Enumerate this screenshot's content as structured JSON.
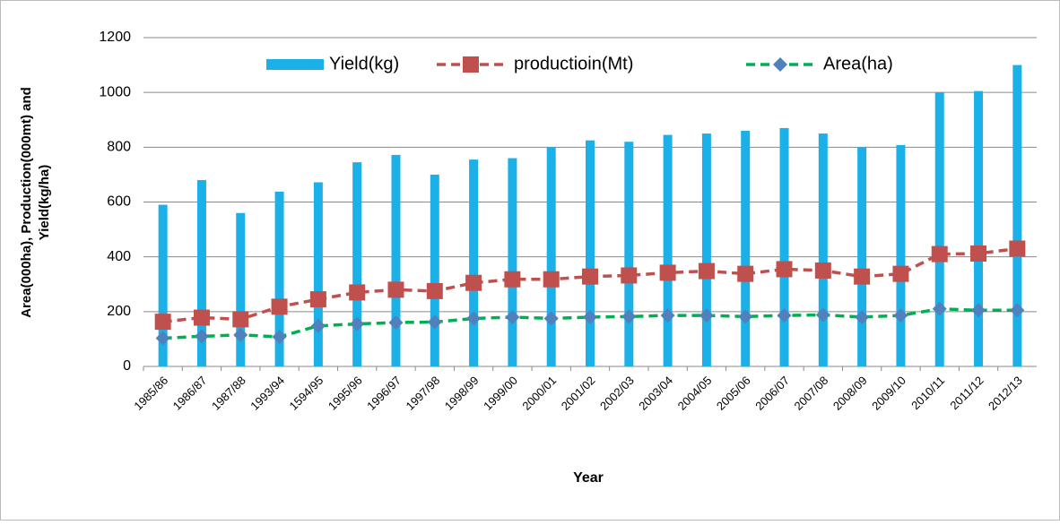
{
  "chart_data": {
    "type": "combo",
    "y_label": [
      "Area(000ha), Production(000mt) and",
      "Yield(kg/ha)"
    ],
    "x_label": "Year",
    "categories": [
      "1985/86",
      "1986/87",
      "1987/88",
      "1993/94",
      "1594/95",
      "1995/96",
      "1996/97",
      "1997/98",
      "1998/99",
      "1999/00",
      "2000/01",
      "2001/02",
      "2002/03",
      "2003/04",
      "2004/05",
      "2005/06",
      "2006/07",
      "2007/08",
      "2008/09",
      "2009/10",
      "2010/11",
      "2011/12",
      "2012/13"
    ],
    "series": [
      {
        "name": "Yield(kg)",
        "type": "bar",
        "color": "#1cb0e8",
        "values": [
          590,
          680,
          560,
          638,
          672,
          745,
          772,
          700,
          755,
          760,
          800,
          825,
          820,
          845,
          850,
          860,
          870,
          850,
          800,
          808,
          1000,
          1005,
          1100
        ]
      },
      {
        "name": "productioin(Mt)",
        "type": "line",
        "color": "#c0504d",
        "marker": "square",
        "marker_color": "#c0504d",
        "values": [
          163,
          178,
          172,
          218,
          245,
          270,
          280,
          275,
          305,
          318,
          318,
          328,
          332,
          342,
          348,
          338,
          355,
          350,
          328,
          338,
          410,
          412,
          430
        ]
      },
      {
        "name": "Area(ha)",
        "type": "line",
        "color": "#00b050",
        "marker": "diamond",
        "marker_color": "#4f81bd",
        "values": [
          103,
          110,
          115,
          108,
          148,
          155,
          160,
          162,
          175,
          180,
          175,
          180,
          182,
          186,
          186,
          182,
          186,
          188,
          180,
          186,
          210,
          205,
          205
        ]
      }
    ],
    "ylim": [
      0,
      1200
    ],
    "yticks": [
      0,
      200,
      400,
      600,
      800,
      1000,
      1200
    ],
    "grid": true,
    "legend": "top"
  }
}
